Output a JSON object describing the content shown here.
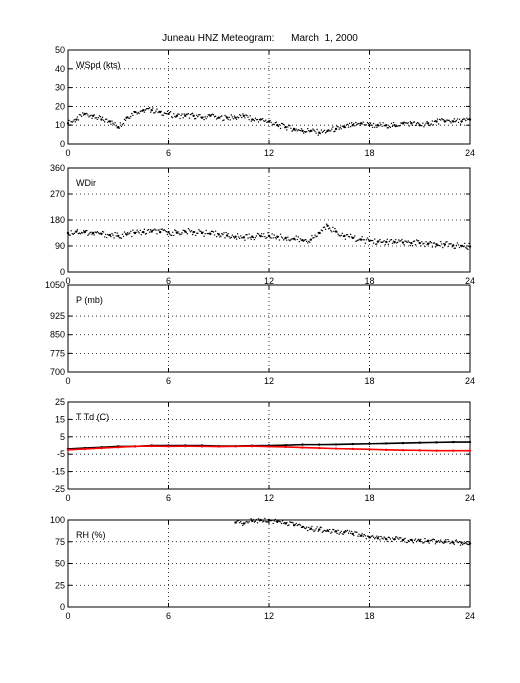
{
  "title": "Juneau HNZ Meteogram:      March  1, 2000",
  "chart_data": [
    {
      "type": "scatter",
      "label": "WSpd (kts)",
      "xlim": [
        0,
        24
      ],
      "xticks": [
        0,
        6,
        12,
        18,
        24
      ],
      "ylim": [
        0,
        50
      ],
      "yticks": [
        0,
        10,
        20,
        30,
        40,
        50
      ],
      "grid": true,
      "series": [
        {
          "color": "#000000",
          "x": [
            0,
            0.5,
            1,
            1.5,
            2,
            2.5,
            3,
            3.5,
            4,
            4.5,
            5,
            5.5,
            6,
            6.5,
            7,
            7.5,
            8,
            8.5,
            9,
            9.5,
            10,
            10.5,
            11,
            11.5,
            12,
            12.5,
            13,
            13.5,
            14,
            14.5,
            15,
            15.5,
            16,
            16.5,
            17,
            17.5,
            18,
            18.5,
            19,
            19.5,
            20,
            20.5,
            21,
            21.5,
            22,
            22.5,
            23,
            23.5,
            24
          ],
          "y": [
            11,
            13,
            16,
            15,
            13,
            12,
            9,
            14,
            17,
            18,
            18,
            17,
            16,
            15,
            15,
            15,
            14,
            15,
            14,
            14,
            14,
            15,
            13,
            13,
            12,
            10,
            9,
            8,
            7,
            7,
            6,
            7,
            8,
            9,
            10,
            11,
            10,
            10,
            10,
            10,
            11,
            11,
            10,
            11,
            12,
            12,
            12,
            12,
            13
          ]
        }
      ]
    },
    {
      "type": "scatter",
      "label": "WDir",
      "xlim": [
        0,
        24
      ],
      "xticks": [
        0,
        6,
        12,
        18,
        24
      ],
      "ylim": [
        0,
        360
      ],
      "yticks": [
        0,
        90,
        180,
        270,
        360
      ],
      "grid": true,
      "series": [
        {
          "color": "#000000",
          "x": [
            0,
            0.5,
            1,
            1.5,
            2,
            2.5,
            3,
            3.5,
            4,
            4.5,
            5,
            5.5,
            6,
            6.5,
            7,
            7.5,
            8,
            8.5,
            9,
            9.5,
            10,
            10.5,
            11,
            11.5,
            12,
            12.5,
            13,
            13.5,
            14,
            14.5,
            15,
            15.5,
            16,
            16.5,
            17,
            17.5,
            18,
            18.5,
            19,
            19.5,
            20,
            20.5,
            21,
            21.5,
            22,
            22.5,
            23,
            23.5,
            24
          ],
          "y": [
            135,
            140,
            138,
            135,
            132,
            128,
            125,
            130,
            135,
            138,
            140,
            138,
            138,
            136,
            140,
            138,
            135,
            132,
            130,
            126,
            122,
            120,
            122,
            124,
            125,
            122,
            118,
            115,
            110,
            112,
            135,
            160,
            140,
            125,
            118,
            112,
            108,
            105,
            104,
            103,
            102,
            100,
            100,
            98,
            96,
            95,
            92,
            90,
            88
          ]
        }
      ]
    },
    {
      "type": "scatter",
      "label": "P (mb)",
      "xlim": [
        0,
        24
      ],
      "xticks": [
        0,
        6,
        12,
        18,
        24
      ],
      "ylim": [
        700,
        1050
      ],
      "yticks": [
        700,
        775,
        850,
        925,
        1050
      ],
      "grid": true,
      "series": []
    },
    {
      "type": "line",
      "label": "T Td (C)",
      "xlim": [
        0,
        24
      ],
      "xticks": [
        0,
        6,
        12,
        18,
        24
      ],
      "ylim": [
        -25,
        25
      ],
      "yticks": [
        -25,
        -15,
        -5,
        5,
        15,
        25
      ],
      "grid": true,
      "series": [
        {
          "color": "#000000",
          "x": [
            0,
            1,
            2,
            3,
            4,
            5,
            6,
            7,
            8,
            9,
            10,
            11,
            12,
            13,
            14,
            15,
            16,
            17,
            18,
            19,
            20,
            21,
            22,
            23,
            24
          ],
          "y": [
            -2,
            -1.5,
            -1,
            -0.5,
            -0.5,
            0,
            0,
            0,
            0,
            -0.3,
            -0.3,
            -0.1,
            0,
            0.2,
            0.5,
            0.5,
            0.6,
            0.8,
            1,
            1.2,
            1.4,
            1.6,
            1.8,
            2,
            2
          ]
        },
        {
          "color": "#ff0000",
          "x": [
            0,
            1,
            2,
            3,
            4,
            5,
            6,
            7,
            8,
            9,
            10,
            11,
            12,
            13,
            14,
            15,
            16,
            17,
            18,
            19,
            20,
            21,
            22,
            23,
            24
          ],
          "y": [
            -2.5,
            -2,
            -1.5,
            -1,
            -0.5,
            -0.3,
            -0.5,
            -0.4,
            -0.5,
            -0.6,
            -0.5,
            -0.4,
            -0.6,
            -0.8,
            -1.2,
            -1.5,
            -1.8,
            -2,
            -2.2,
            -2.5,
            -2.7,
            -2.8,
            -3,
            -3,
            -3
          ]
        }
      ]
    },
    {
      "type": "scatter",
      "label": "RH (%)",
      "xlim": [
        0,
        24
      ],
      "xticks": [
        0,
        6,
        12,
        18,
        24
      ],
      "ylim": [
        0,
        100
      ],
      "yticks": [
        0,
        25,
        50,
        75,
        100
      ],
      "grid": true,
      "series": [
        {
          "color": "#000000",
          "x": [
            10,
            10.5,
            11,
            11.5,
            12,
            12.5,
            13,
            13.5,
            14,
            14.5,
            15,
            15.5,
            16,
            16.5,
            17,
            17.5,
            18,
            18.5,
            19,
            19.5,
            20,
            20.5,
            21,
            21.5,
            22,
            22.5,
            23,
            23.5,
            24
          ],
          "y": [
            97,
            96,
            99,
            100,
            100,
            98,
            96,
            94,
            92,
            90,
            89,
            88,
            87,
            86,
            84,
            82,
            80,
            79,
            78,
            78,
            77,
            77,
            76,
            76,
            75,
            75,
            74,
            74,
            73
          ]
        }
      ]
    }
  ]
}
